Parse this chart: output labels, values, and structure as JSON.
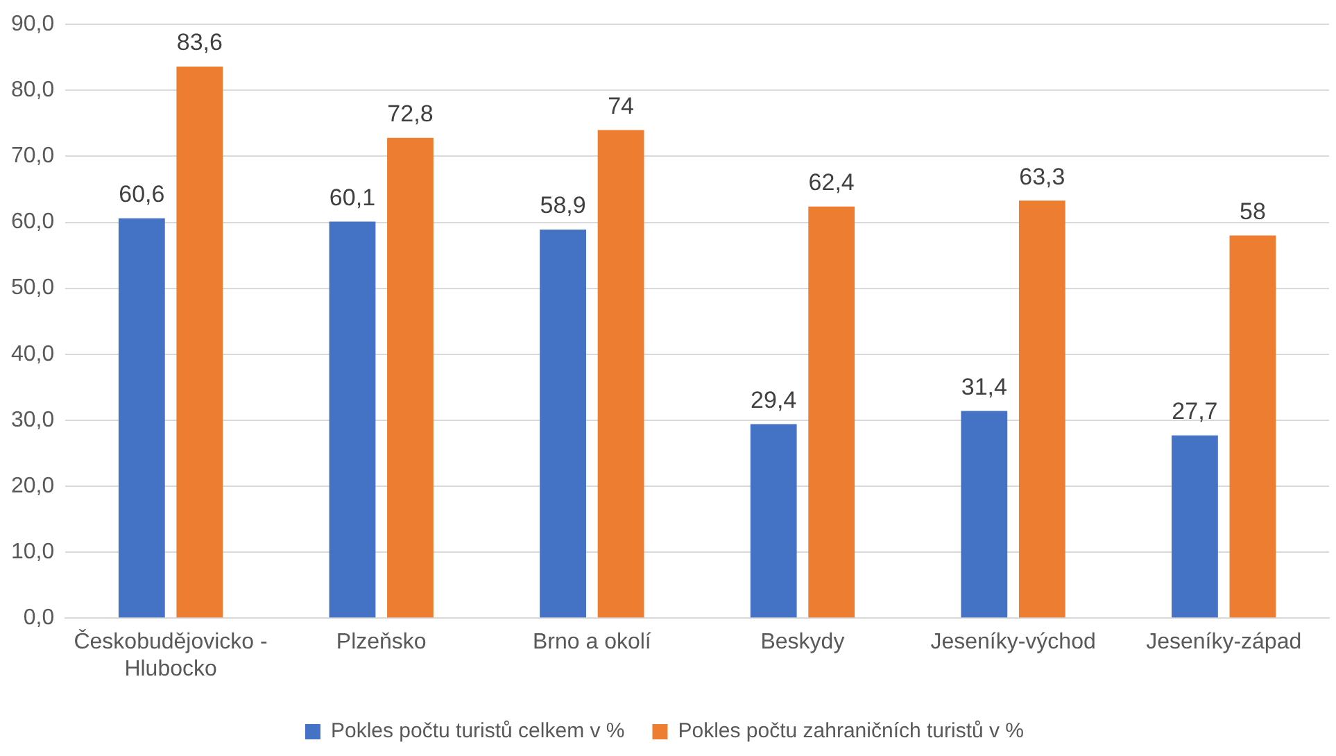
{
  "chart_data": {
    "type": "bar",
    "categories": [
      "Českobudějovicko - Hlubocko",
      "Plzeňsko",
      "Brno a okolí",
      "Beskydy",
      "Jeseníky-východ",
      "Jeseníky-západ"
    ],
    "series": [
      {
        "name": "Pokles počtu turistů celkem v %",
        "color": "#4472c4",
        "values": [
          60.6,
          60.1,
          58.9,
          29.4,
          31.4,
          27.7
        ],
        "value_labels": [
          "60,6",
          "60,1",
          "58,9",
          "29,4",
          "31,4",
          "27,7"
        ]
      },
      {
        "name": "Pokles počtu zahraničních turistů v %",
        "color": "#ed7d31",
        "values": [
          83.6,
          72.8,
          74,
          62.4,
          63.3,
          58
        ],
        "value_labels": [
          "83,6",
          "72,8",
          "74",
          "62,4",
          "63,3",
          "58"
        ]
      }
    ],
    "ylim": [
      0,
      90
    ],
    "yticks": [
      {
        "value": 0,
        "label": "0,0"
      },
      {
        "value": 10,
        "label": "10,0"
      },
      {
        "value": 20,
        "label": "20,0"
      },
      {
        "value": 30,
        "label": "30,0"
      },
      {
        "value": 40,
        "label": "40,0"
      },
      {
        "value": 50,
        "label": "50,0"
      },
      {
        "value": 60,
        "label": "60,0"
      },
      {
        "value": 70,
        "label": "70,0"
      },
      {
        "value": 80,
        "label": "80,0"
      },
      {
        "value": 90,
        "label": "90,0"
      }
    ],
    "grid": "y",
    "legend": "bottom"
  }
}
